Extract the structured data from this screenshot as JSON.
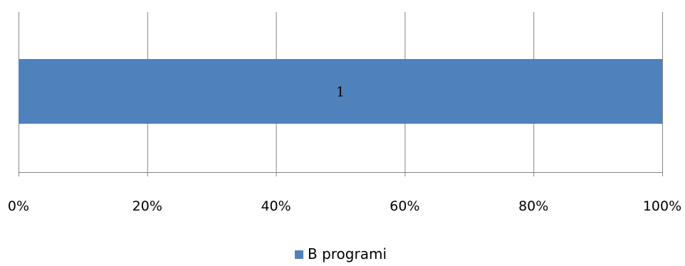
{
  "chart_data": {
    "type": "bar",
    "orientation": "horizontal",
    "stacking": "percent",
    "categories": [
      "1"
    ],
    "series": [
      {
        "name": "B programi",
        "values": [
          1
        ],
        "color": "#4F81BD"
      }
    ],
    "data_labels": [
      "1"
    ],
    "xlim": [
      0,
      100
    ],
    "x_ticks": [
      0,
      20,
      40,
      60,
      80,
      100
    ],
    "x_tick_labels": [
      "0%",
      "20%",
      "40%",
      "60%",
      "80%",
      "100%"
    ],
    "grid": true,
    "gridline_color": "#868686",
    "legend_position": "bottom"
  }
}
